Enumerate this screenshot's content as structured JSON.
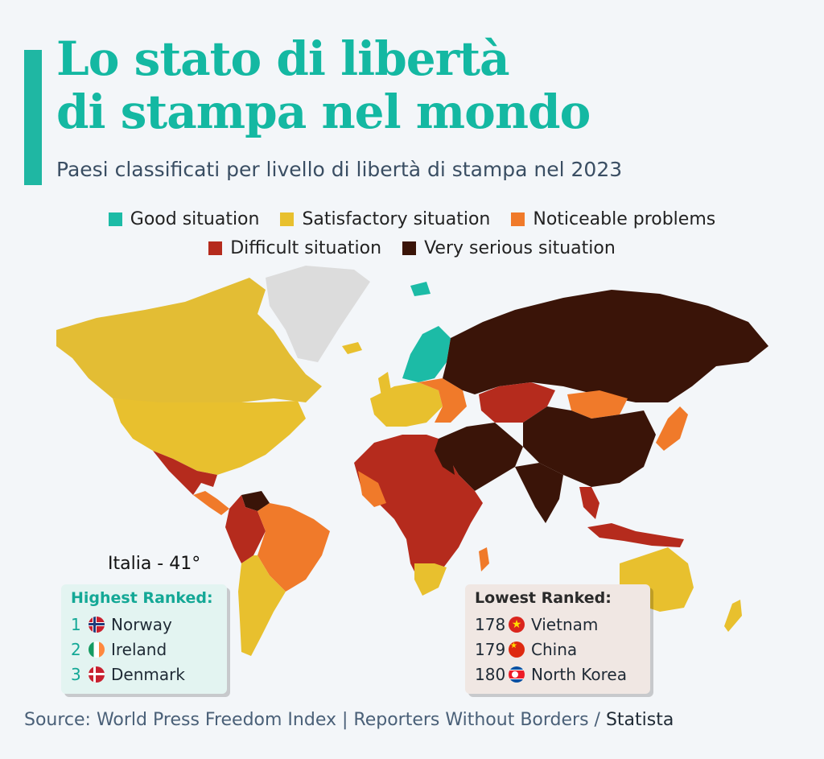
{
  "title_line1": "Lo stato di libertà",
  "title_line2": "di stampa nel mondo",
  "subtitle": "Paesi classificati per livello di libertà di stampa nel 2023",
  "legend": [
    {
      "label": "Good situation",
      "color": "#1cbba6"
    },
    {
      "label": "Satisfactory situation",
      "color": "#e8c02e"
    },
    {
      "label": "Noticeable problems",
      "color": "#f07a2a"
    },
    {
      "label": "Difficult situation",
      "color": "#b52b1d"
    },
    {
      "label": "Very serious situation",
      "color": "#3a1408"
    }
  ],
  "italia_label": "Italia - 41°",
  "highest": {
    "title": "Highest Ranked:",
    "items": [
      {
        "rank": "1",
        "country": "Norway",
        "flag": "norway-flag-icon"
      },
      {
        "rank": "2",
        "country": "Ireland",
        "flag": "ireland-flag-icon"
      },
      {
        "rank": "3",
        "country": "Denmark",
        "flag": "denmark-flag-icon"
      }
    ]
  },
  "lowest": {
    "title": "Lowest Ranked:",
    "items": [
      {
        "rank": "178",
        "country": "Vietnam",
        "flag": "vietnam-flag-icon"
      },
      {
        "rank": "179",
        "country": "China",
        "flag": "china-flag-icon"
      },
      {
        "rank": "180",
        "country": "North Korea",
        "flag": "north-korea-flag-icon"
      }
    ]
  },
  "source": {
    "text": "Source: World Press Freedom Index | Reporters Without Borders / ",
    "brand": "Statista"
  }
}
